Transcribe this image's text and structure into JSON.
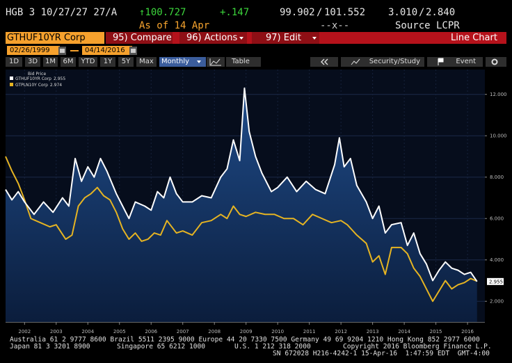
{
  "header": {
    "security": "HGB 3 10/27/27 27/A",
    "last_price": "↑100.727",
    "change": "+.147",
    "bid": "99.902",
    "separator": "/",
    "ask": "101.552",
    "bid_yield": "3.010",
    "ask_yield": "2.840",
    "as_of": "As of 14 Apr",
    "size": "--x--",
    "source": "Source LCPR"
  },
  "toolbar": {
    "ticker": "GTHUF10YR Corp",
    "compare": "95) Compare",
    "actions": "96) Actions",
    "edit": "97) Edit",
    "view": "Line Chart",
    "start_date": "02/26/1999",
    "end_date": "04/14/2016",
    "periods": [
      "1D",
      "3D",
      "1M",
      "6M",
      "YTD",
      "1Y",
      "5Y",
      "Max"
    ],
    "frequency": "Monthly",
    "table": "Table",
    "security_study": "Security/Study",
    "event": "Event"
  },
  "chart_data": {
    "type": "line",
    "legend_title": "Bid Price",
    "grid": true,
    "xlim": [
      2001.4,
      2016.35
    ],
    "xticks": [
      2002,
      2003,
      2004,
      2005,
      2006,
      2007,
      2008,
      2009,
      2010,
      2011,
      2012,
      2013,
      2014,
      2015,
      2016
    ],
    "ylim": [
      1,
      13.2
    ],
    "yticks": [
      {
        "value": 2,
        "label": "2.000"
      },
      {
        "value": 4,
        "label": "4.000"
      },
      {
        "value": 6,
        "label": "6.000"
      },
      {
        "value": 8,
        "label": "8.000"
      },
      {
        "value": 10,
        "label": "10.000"
      },
      {
        "value": 12,
        "label": "12.000"
      }
    ],
    "series": [
      {
        "name": "GTHUF10YR Corp",
        "color": "#ffffff",
        "x": [
          2001.4,
          2001.6,
          2001.8,
          2002.0,
          2002.3,
          2002.6,
          2002.9,
          2003.2,
          2003.4,
          2003.6,
          2003.8,
          2004.0,
          2004.2,
          2004.4,
          2004.6,
          2004.9,
          2005.1,
          2005.3,
          2005.5,
          2005.8,
          2006.0,
          2006.2,
          2006.4,
          2006.6,
          2006.8,
          2007.0,
          2007.3,
          2007.6,
          2007.9,
          2008.2,
          2008.4,
          2008.6,
          2008.8,
          2008.95,
          2009.1,
          2009.3,
          2009.5,
          2009.8,
          2010.0,
          2010.3,
          2010.6,
          2010.9,
          2011.2,
          2011.5,
          2011.8,
          2011.95,
          2012.1,
          2012.3,
          2012.5,
          2012.8,
          2013.0,
          2013.2,
          2013.4,
          2013.6,
          2013.9,
          2014.1,
          2014.3,
          2014.5,
          2014.7,
          2014.9,
          2015.1,
          2015.3,
          2015.5,
          2015.7,
          2015.9,
          2016.1,
          2016.3
        ],
        "values": [
          7.4,
          6.9,
          7.3,
          6.8,
          6.2,
          6.8,
          6.3,
          7.0,
          6.6,
          8.9,
          7.8,
          8.5,
          8.0,
          8.9,
          8.3,
          7.2,
          6.6,
          6.0,
          6.8,
          6.6,
          6.4,
          7.3,
          7.0,
          8.0,
          7.2,
          6.8,
          6.8,
          7.1,
          7.0,
          8.0,
          8.4,
          9.8,
          8.8,
          12.3,
          10.2,
          9.0,
          8.2,
          7.3,
          7.5,
          8.0,
          7.3,
          7.8,
          7.4,
          7.2,
          8.6,
          9.9,
          8.5,
          8.9,
          7.6,
          6.8,
          6.0,
          6.6,
          5.3,
          5.7,
          5.8,
          4.7,
          5.3,
          4.3,
          3.8,
          3.0,
          3.5,
          3.9,
          3.6,
          3.5,
          3.3,
          3.4,
          2.955
        ]
      },
      {
        "name": "GTPLN10Y Corp",
        "color": "#e6b422",
        "x": [
          2001.4,
          2001.6,
          2001.8,
          2002.0,
          2002.2,
          2002.5,
          2002.8,
          2003.0,
          2003.3,
          2003.5,
          2003.7,
          2003.9,
          2004.1,
          2004.3,
          2004.5,
          2004.7,
          2004.9,
          2005.1,
          2005.3,
          2005.5,
          2005.7,
          2005.9,
          2006.1,
          2006.3,
          2006.5,
          2006.8,
          2007.0,
          2007.3,
          2007.6,
          2007.9,
          2008.2,
          2008.4,
          2008.6,
          2008.8,
          2009.0,
          2009.3,
          2009.6,
          2009.9,
          2010.2,
          2010.5,
          2010.8,
          2011.1,
          2011.4,
          2011.7,
          2012.0,
          2012.2,
          2012.5,
          2012.8,
          2013.0,
          2013.2,
          2013.4,
          2013.6,
          2013.9,
          2014.1,
          2014.3,
          2014.5,
          2014.7,
          2014.9,
          2015.1,
          2015.3,
          2015.5,
          2015.7,
          2015.9,
          2016.1,
          2016.3
        ],
        "values": [
          9.0,
          8.3,
          7.7,
          6.9,
          6.0,
          5.8,
          5.6,
          5.7,
          5.0,
          5.2,
          6.6,
          7.0,
          7.2,
          7.5,
          7.1,
          6.9,
          6.3,
          5.5,
          5.0,
          5.3,
          4.9,
          5.0,
          5.3,
          5.2,
          5.9,
          5.3,
          5.4,
          5.2,
          5.8,
          5.9,
          6.2,
          6.0,
          6.6,
          6.2,
          6.1,
          6.3,
          6.2,
          6.2,
          6.0,
          6.0,
          5.7,
          6.2,
          6.0,
          5.8,
          5.9,
          5.7,
          5.2,
          4.8,
          3.9,
          4.2,
          3.3,
          4.6,
          4.6,
          4.3,
          3.6,
          3.2,
          2.6,
          2.0,
          2.5,
          3.0,
          2.6,
          2.8,
          2.9,
          3.1,
          2.974
        ]
      }
    ]
  },
  "footer": {
    "line1": "Australia 61 2 9777 8600 Brazil 5511 2395 9000 Europe 44 20 7330 7500 Germany 49 69 9204 1210 Hong Kong 852 2977 6000",
    "line2": [
      "Japan 81 3 3201 8900",
      "Singapore 65 6212 1000",
      "U.S. 1 212 318 2000",
      "Copyright 2016 Bloomberg Finance L.P."
    ],
    "line3": "SN 672028 H216-4242-1 15-Apr-16  1:47:59 EDT  GMT-4:00"
  }
}
